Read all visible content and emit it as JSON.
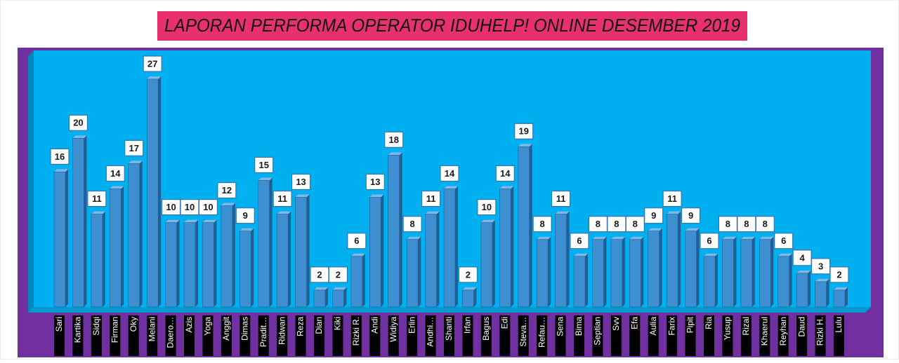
{
  "chart_data": {
    "type": "bar",
    "title": "LAPORAN PERFORMA OPERATOR IDUHELP! ONLINE DESEMBER 2019",
    "categories": [
      "Sari",
      "Kartika",
      "Sidqi",
      "Firman",
      "Oky",
      "Melani",
      "Daero…",
      "Azis",
      "Yoga",
      "Anggit",
      "Dimas",
      "Pradit…",
      "Ridwan",
      "Reza",
      "Dian",
      "Kiki",
      "Rizki R.",
      "Andi",
      "Widiya",
      "Erlin",
      "Andhi…",
      "Shanti",
      "Irfan",
      "Bagus",
      "Edi",
      "Steva…",
      "Refau…",
      "Sena",
      "Bima",
      "Septian",
      "Svv",
      "Efa",
      "Aulia",
      "Farix",
      "Pipit",
      "Ria",
      "Yusup",
      "Rizal",
      "Khaerul",
      "Reyhan",
      "Daud",
      "Rizki H.",
      "Lulu"
    ],
    "values": [
      16,
      20,
      11,
      14,
      17,
      27,
      10,
      10,
      10,
      12,
      9,
      15,
      11,
      13,
      2,
      2,
      6,
      13,
      18,
      8,
      11,
      14,
      2,
      10,
      14,
      19,
      8,
      11,
      6,
      8,
      8,
      8,
      9,
      11,
      9,
      6,
      8,
      8,
      8,
      6,
      4,
      3,
      2
    ],
    "color": "#3d8fd1"
  }
}
